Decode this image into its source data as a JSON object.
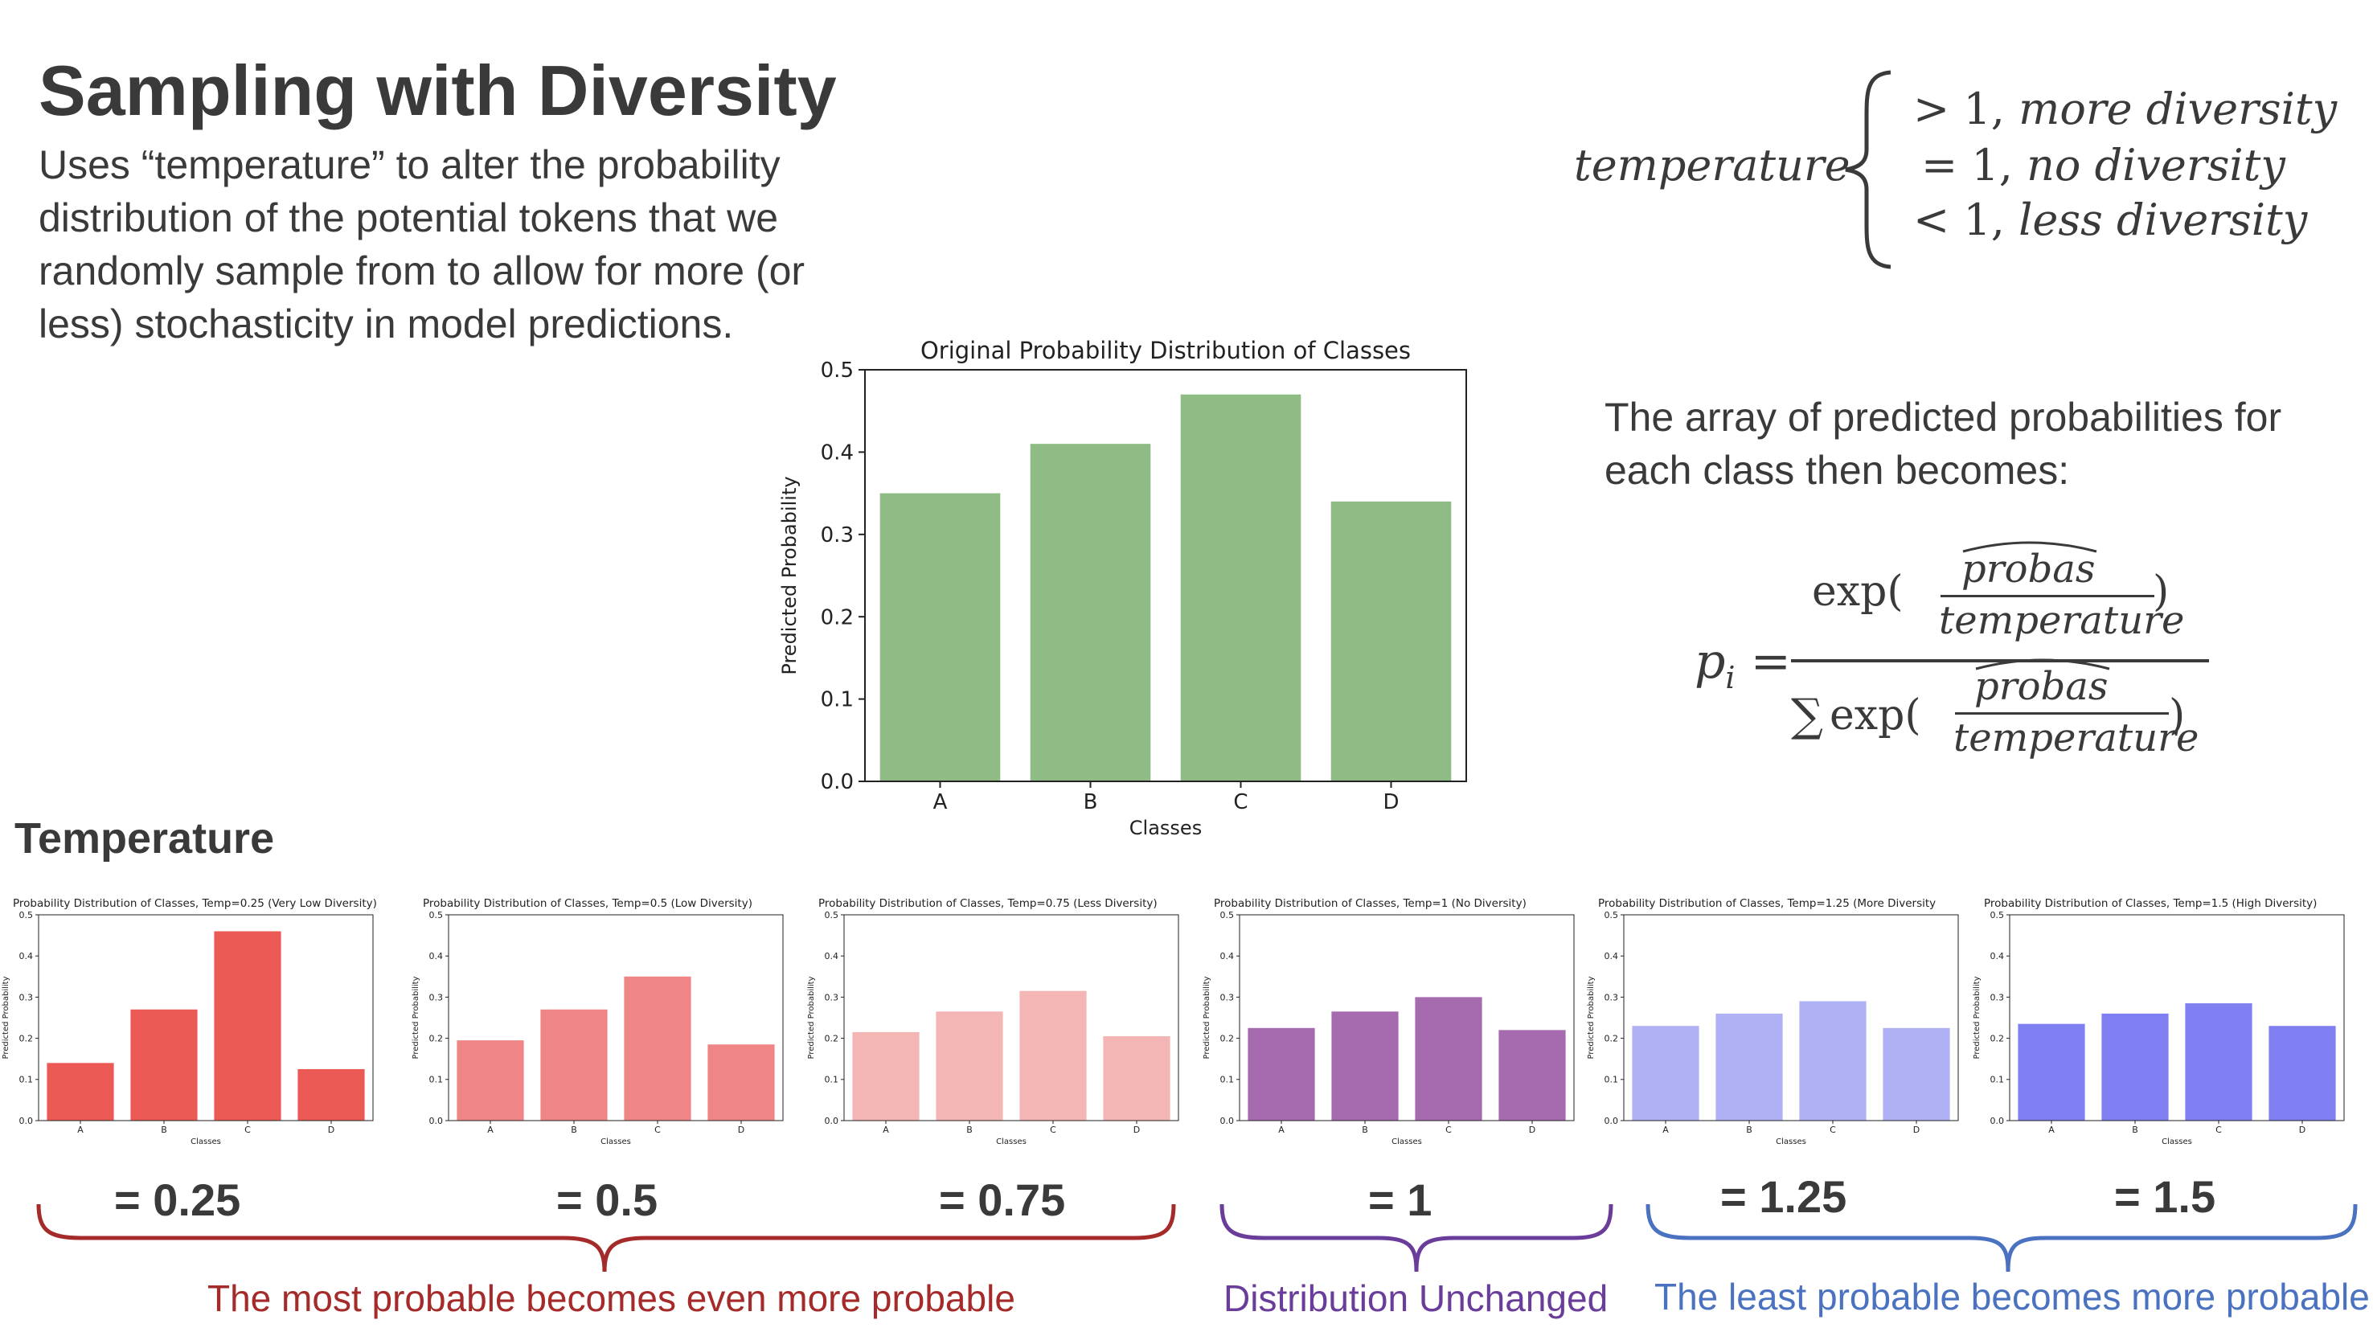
{
  "slide": {
    "title": "Sampling with Diversity",
    "subtitle": "Uses “temperature” to alter the probability distribution of the potential tokens that we randomly sample from to allow for more (or less) stochasticity in model predictions.",
    "temperature_heading": "Temperature",
    "array_text": "The array of predicted probabilities for each class then becomes:"
  },
  "cases": {
    "word": "temperature",
    "items": [
      {
        "relation": "> 1",
        "text": "more diversity"
      },
      {
        "relation": "= 1",
        "text": "no diversity"
      },
      {
        "relation": "< 1",
        "text": "less diversity"
      }
    ]
  },
  "formula": {
    "lhs": "p",
    "subscript": "i",
    "equals": "=",
    "exp": "exp(",
    "close": ")",
    "sum": "∑",
    "numerator": "probas",
    "denominator": "temperature"
  },
  "temp_labels": [
    "= 0.25",
    "= 0.5",
    "= 0.75",
    "= 1",
    "= 1.25",
    "= 1.5"
  ],
  "groups": [
    {
      "caption": "The most probable becomes even more probable",
      "color": "#a52a2a"
    },
    {
      "caption": "Distribution Unchanged",
      "color": "#6a3d9a"
    },
    {
      "caption": "The least probable becomes more probable",
      "color": "#4a72c0"
    }
  ],
  "chart_data": [
    {
      "type": "bar",
      "title": "Original Probability Distribution of Classes",
      "xlabel": "Classes",
      "ylabel": "Predicted Probability",
      "categories": [
        "A",
        "B",
        "C",
        "D"
      ],
      "values": [
        0.35,
        0.41,
        0.47,
        0.34
      ],
      "ylim": [
        0,
        0.5
      ],
      "yticks": [
        "0.0",
        "0.1",
        "0.2",
        "0.3",
        "0.4",
        "0.5"
      ],
      "color": "#8fbc85"
    },
    {
      "type": "bar",
      "title": "Probability Distribution of Classes, Temp=0.25 (Very Low Diversity)",
      "xlabel": "Classes",
      "ylabel": "Predicted Probability",
      "categories": [
        "A",
        "B",
        "C",
        "D"
      ],
      "values": [
        0.14,
        0.27,
        0.46,
        0.125
      ],
      "ylim": [
        0,
        0.5
      ],
      "yticks": [
        "0.0",
        "0.1",
        "0.2",
        "0.3",
        "0.4",
        "0.5"
      ],
      "color": "#eb5a55"
    },
    {
      "type": "bar",
      "title": "Probability Distribution of Classes, Temp=0.5 (Low Diversity)",
      "xlabel": "Classes",
      "ylabel": "Predicted Probability",
      "categories": [
        "A",
        "B",
        "C",
        "D"
      ],
      "values": [
        0.195,
        0.27,
        0.35,
        0.185
      ],
      "ylim": [
        0,
        0.5
      ],
      "yticks": [
        "0.0",
        "0.1",
        "0.2",
        "0.3",
        "0.4",
        "0.5"
      ],
      "color": "#ef8585"
    },
    {
      "type": "bar",
      "title": "Probability Distribution of Classes, Temp=0.75 (Less Diversity)",
      "xlabel": "Classes",
      "ylabel": "Predicted Probability",
      "categories": [
        "A",
        "B",
        "C",
        "D"
      ],
      "values": [
        0.215,
        0.265,
        0.315,
        0.205
      ],
      "ylim": [
        0,
        0.5
      ],
      "yticks": [
        "0.0",
        "0.1",
        "0.2",
        "0.3",
        "0.4",
        "0.5"
      ],
      "color": "#f4b5b5"
    },
    {
      "type": "bar",
      "title": "Probability Distribution of Classes, Temp=1 (No Diversity)",
      "xlabel": "Classes",
      "ylabel": "Predicted Probability",
      "categories": [
        "A",
        "B",
        "C",
        "D"
      ],
      "values": [
        0.225,
        0.265,
        0.3,
        0.22
      ],
      "ylim": [
        0,
        0.5
      ],
      "yticks": [
        "0.0",
        "0.1",
        "0.2",
        "0.3",
        "0.4",
        "0.5"
      ],
      "color": "#a56bae"
    },
    {
      "type": "bar",
      "title": "Probability Distribution of Classes, Temp=1.25 (More Diversity",
      "xlabel": "Classes",
      "ylabel": "Predicted Probability",
      "categories": [
        "A",
        "B",
        "C",
        "D"
      ],
      "values": [
        0.23,
        0.26,
        0.29,
        0.225
      ],
      "ylim": [
        0,
        0.5
      ],
      "yticks": [
        "0.0",
        "0.1",
        "0.2",
        "0.3",
        "0.4",
        "0.5"
      ],
      "color": "#b0b0f5"
    },
    {
      "type": "bar",
      "title": "Probability Distribution of Classes, Temp=1.5 (High Diversity)",
      "xlabel": "Classes",
      "ylabel": "Predicted Probability",
      "categories": [
        "A",
        "B",
        "C",
        "D"
      ],
      "values": [
        0.235,
        0.26,
        0.285,
        0.23
      ],
      "ylim": [
        0,
        0.5
      ],
      "yticks": [
        "0.0",
        "0.1",
        "0.2",
        "0.3",
        "0.4",
        "0.5"
      ],
      "color": "#7f7ff2"
    }
  ]
}
